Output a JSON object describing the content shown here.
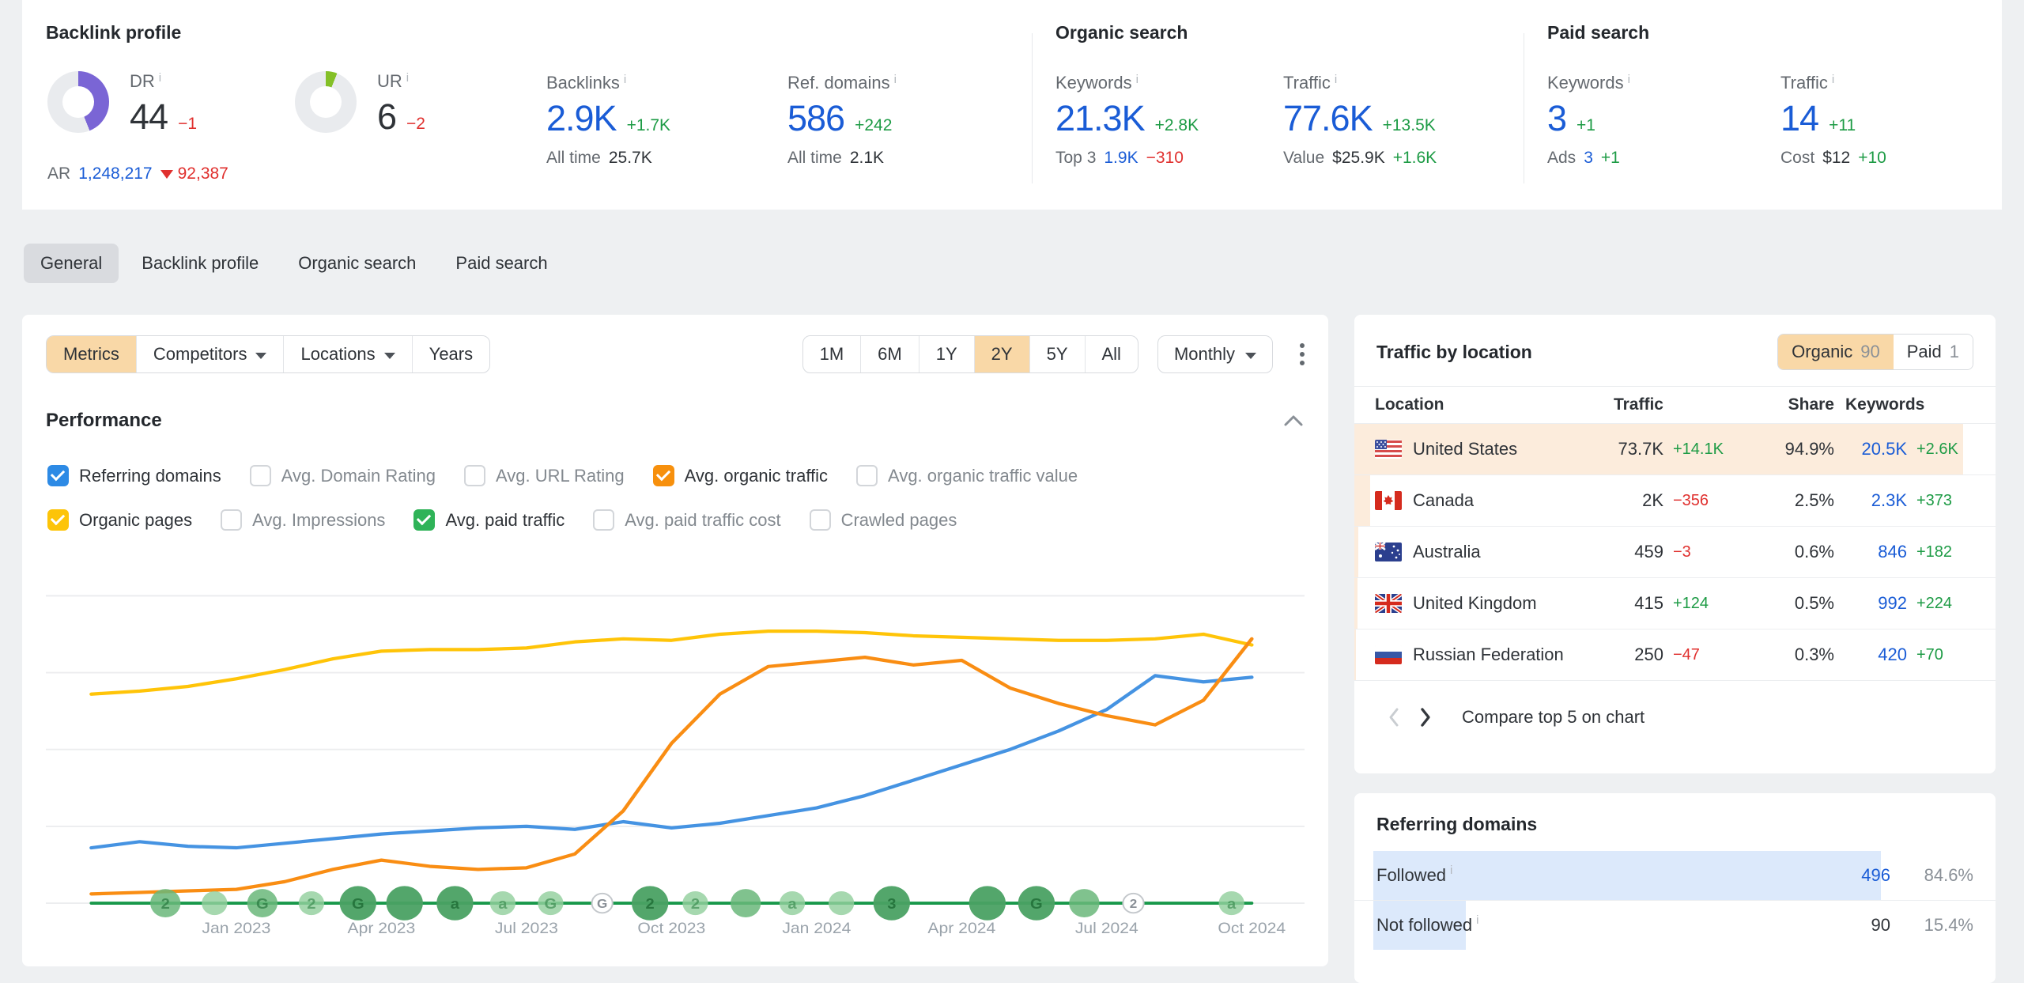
{
  "colors": {
    "link_blue": "#1a5cd6",
    "positive_green": "#1d9b45",
    "negative_red": "#e0302e",
    "selected_peach": "#f9d8a7",
    "dr_purple": "#7a65d5",
    "ur_green": "#84c027",
    "donut_track": "#e9ebee"
  },
  "overview": {
    "backlink_profile": {
      "title": "Backlink profile",
      "dr": {
        "label": "DR",
        "value": "44",
        "delta": "−1",
        "percent": 44
      },
      "ur": {
        "label": "UR",
        "value": "6",
        "delta": "−2",
        "percent": 6
      },
      "ar": {
        "label": "AR",
        "value": "1,248,217",
        "delta": "92,387"
      },
      "backlinks": {
        "label": "Backlinks",
        "value": "2.9K",
        "delta": "+1.7K",
        "sub_label": "All time",
        "sub_value": "25.7K"
      },
      "ref_domains": {
        "label": "Ref. domains",
        "value": "586",
        "delta": "+242",
        "sub_label": "All time",
        "sub_value": "2.1K"
      }
    },
    "organic_search": {
      "title": "Organic search",
      "keywords": {
        "label": "Keywords",
        "value": "21.3K",
        "delta": "+2.8K",
        "sub_label": "Top 3",
        "sub_value": "1.9K",
        "sub_delta": "−310"
      },
      "traffic": {
        "label": "Traffic",
        "value": "77.6K",
        "delta": "+13.5K",
        "sub_label": "Value",
        "sub_value": "$25.9K",
        "sub_delta": "+1.6K"
      }
    },
    "paid_search": {
      "title": "Paid search",
      "keywords": {
        "label": "Keywords",
        "value": "3",
        "delta": "+1",
        "sub_label": "Ads",
        "sub_value": "3",
        "sub_delta": "+1"
      },
      "traffic": {
        "label": "Traffic",
        "value": "14",
        "delta": "+11",
        "sub_label": "Cost",
        "sub_value": "$12",
        "sub_delta": "+10"
      }
    }
  },
  "tabs": [
    {
      "label": "General",
      "active": true
    },
    {
      "label": "Backlink profile",
      "active": false
    },
    {
      "label": "Organic search",
      "active": false
    },
    {
      "label": "Paid search",
      "active": false
    }
  ],
  "controls": {
    "filters": [
      {
        "label": "Metrics",
        "selected": true,
        "caret": false
      },
      {
        "label": "Competitors",
        "selected": false,
        "caret": true
      },
      {
        "label": "Locations",
        "selected": false,
        "caret": true
      },
      {
        "label": "Years",
        "selected": false,
        "caret": false
      }
    ],
    "ranges": [
      "1M",
      "6M",
      "1Y",
      "2Y",
      "5Y",
      "All"
    ],
    "active_range": "2Y",
    "granularity": "Monthly"
  },
  "performance": {
    "title": "Performance",
    "checkbox_rows": [
      [
        {
          "label": "Referring domains",
          "checked": true,
          "color": "#2d8ae5"
        },
        {
          "label": "Avg. Domain Rating",
          "checked": false
        },
        {
          "label": "Avg. URL Rating",
          "checked": false
        },
        {
          "label": "Avg. organic traffic",
          "checked": true,
          "color": "#f7900d"
        },
        {
          "label": "Avg. organic traffic value",
          "checked": false
        }
      ],
      [
        {
          "label": "Organic pages",
          "checked": true,
          "color": "#fdc408"
        },
        {
          "label": "Avg. Impressions",
          "checked": false
        },
        {
          "label": "Avg. paid traffic",
          "checked": true,
          "color": "#2fb358"
        },
        {
          "label": "Avg. paid traffic cost",
          "checked": false
        },
        {
          "label": "Crawled pages",
          "checked": false
        }
      ]
    ]
  },
  "chart_data": {
    "type": "line",
    "title": "Performance",
    "x": [
      "Oct 2022",
      "Nov 2022",
      "Dec 2022",
      "Jan 2023",
      "Feb 2023",
      "Mar 2023",
      "Apr 2023",
      "May 2023",
      "Jun 2023",
      "Jul 2023",
      "Aug 2023",
      "Sep 2023",
      "Oct 2023",
      "Nov 2023",
      "Dec 2023",
      "Jan 2024",
      "Feb 2024",
      "Mar 2024",
      "Apr 2024",
      "May 2024",
      "Jun 2024",
      "Jul 2024",
      "Aug 2024",
      "Sep 2024",
      "Oct 2024"
    ],
    "x_axis_labels": [
      "Jan 2023",
      "Apr 2023",
      "Jul 2023",
      "Oct 2023",
      "Jan 2024",
      "Apr 2024",
      "Jul 2024",
      "Oct 2024"
    ],
    "x_axis_label_indices": [
      3,
      6,
      9,
      12,
      15,
      18,
      21,
      24
    ],
    "ylim": [
      0,
      100
    ],
    "grid": true,
    "series": [
      {
        "name": "Organic pages",
        "color": "#ffc408",
        "values": [
          68,
          69,
          70.5,
          73,
          76,
          79.5,
          82,
          82.5,
          82.5,
          83,
          85,
          86,
          85.5,
          87.5,
          88.5,
          88.5,
          88,
          87,
          86.5,
          86,
          85.5,
          85.5,
          86,
          87.5,
          84
        ]
      },
      {
        "name": "Referring domains",
        "color": "#4593e2",
        "values": [
          18,
          20,
          18.5,
          18,
          19.5,
          21,
          22.5,
          23.5,
          24.5,
          25,
          24,
          26.5,
          24.5,
          26,
          28.5,
          31,
          35,
          40,
          45,
          50,
          56,
          63,
          74,
          72,
          73.5
        ]
      },
      {
        "name": "Avg. organic traffic",
        "color": "#f98d13",
        "values": [
          3,
          3.5,
          4,
          4.5,
          7,
          11,
          14,
          12,
          11,
          11.5,
          16,
          30,
          52,
          68,
          77,
          78.5,
          80,
          77.5,
          79,
          70,
          65,
          61,
          58,
          66,
          86
        ]
      },
      {
        "name": "Avg. paid traffic",
        "color": "#18984a",
        "values": [
          0,
          0,
          0,
          0,
          0,
          0,
          0,
          0,
          0,
          0,
          0,
          0,
          0,
          0,
          0,
          0,
          0,
          0,
          0,
          0,
          0,
          0,
          0,
          0,
          0
        ]
      }
    ],
    "events": [
      {
        "x": 0.095,
        "label": "2",
        "style": "m"
      },
      {
        "x": 0.134,
        "label": "",
        "style": "l"
      },
      {
        "x": 0.172,
        "label": "G",
        "style": "m"
      },
      {
        "x": 0.211,
        "label": "2",
        "style": "l"
      },
      {
        "x": 0.248,
        "label": "G",
        "style": "d"
      },
      {
        "x": 0.285,
        "label": "",
        "style": "d"
      },
      {
        "x": 0.325,
        "label": "a",
        "style": "d"
      },
      {
        "x": 0.363,
        "label": "a",
        "style": "l"
      },
      {
        "x": 0.401,
        "label": "G",
        "style": "l"
      },
      {
        "x": 0.442,
        "label": "G",
        "style": "w"
      },
      {
        "x": 0.48,
        "label": "2",
        "style": "d"
      },
      {
        "x": 0.516,
        "label": "2",
        "style": "l"
      },
      {
        "x": 0.556,
        "label": "",
        "style": "m"
      },
      {
        "x": 0.593,
        "label": "a",
        "style": "l"
      },
      {
        "x": 0.632,
        "label": "",
        "style": "l"
      },
      {
        "x": 0.672,
        "label": "3",
        "style": "d"
      },
      {
        "x": 0.748,
        "label": "",
        "style": "d"
      },
      {
        "x": 0.787,
        "label": "G",
        "style": "d"
      },
      {
        "x": 0.825,
        "label": "",
        "style": "m"
      },
      {
        "x": 0.864,
        "label": "2",
        "style": "w"
      },
      {
        "x": 0.942,
        "label": "a",
        "style": "l"
      }
    ]
  },
  "traffic_by_location": {
    "title": "Traffic by location",
    "toggle": [
      {
        "label": "Organic",
        "count": "90",
        "selected": true
      },
      {
        "label": "Paid",
        "count": "1",
        "selected": false
      }
    ],
    "columns": [
      "Location",
      "Traffic",
      "Share",
      "Keywords"
    ],
    "rows": [
      {
        "flag": "us",
        "location": "United States",
        "traffic": "73.7K",
        "traffic_delta": "+14.1K",
        "traffic_trend": "pos",
        "share": "94.9%",
        "share_pct": 94.9,
        "keywords": "20.5K",
        "keywords_delta": "+2.6K"
      },
      {
        "flag": "ca",
        "location": "Canada",
        "traffic": "2K",
        "traffic_delta": "−356",
        "traffic_trend": "neg",
        "share": "2.5%",
        "share_pct": 2.5,
        "keywords": "2.3K",
        "keywords_delta": "+373"
      },
      {
        "flag": "au",
        "location": "Australia",
        "traffic": "459",
        "traffic_delta": "−3",
        "traffic_trend": "neg",
        "share": "0.6%",
        "share_pct": 0.6,
        "keywords": "846",
        "keywords_delta": "+182"
      },
      {
        "flag": "gb",
        "location": "United Kingdom",
        "traffic": "415",
        "traffic_delta": "+124",
        "traffic_trend": "pos",
        "share": "0.5%",
        "share_pct": 0.5,
        "keywords": "992",
        "keywords_delta": "+224"
      },
      {
        "flag": "ru",
        "location": "Russian Federation",
        "traffic": "250",
        "traffic_delta": "−47",
        "traffic_trend": "neg",
        "share": "0.3%",
        "share_pct": 0.3,
        "keywords": "420",
        "keywords_delta": "+70"
      }
    ],
    "footer": {
      "compare_label": "Compare top 5 on chart"
    }
  },
  "referring_domains_panel": {
    "title": "Referring domains",
    "rows": [
      {
        "label": "Followed",
        "value": "496",
        "value_style": "blue",
        "percent": "84.6%",
        "bar_pct": 84.6
      },
      {
        "label": "Not followed",
        "value": "90",
        "value_style": "dark",
        "percent": "15.4%",
        "bar_pct": 15.4
      }
    ]
  }
}
